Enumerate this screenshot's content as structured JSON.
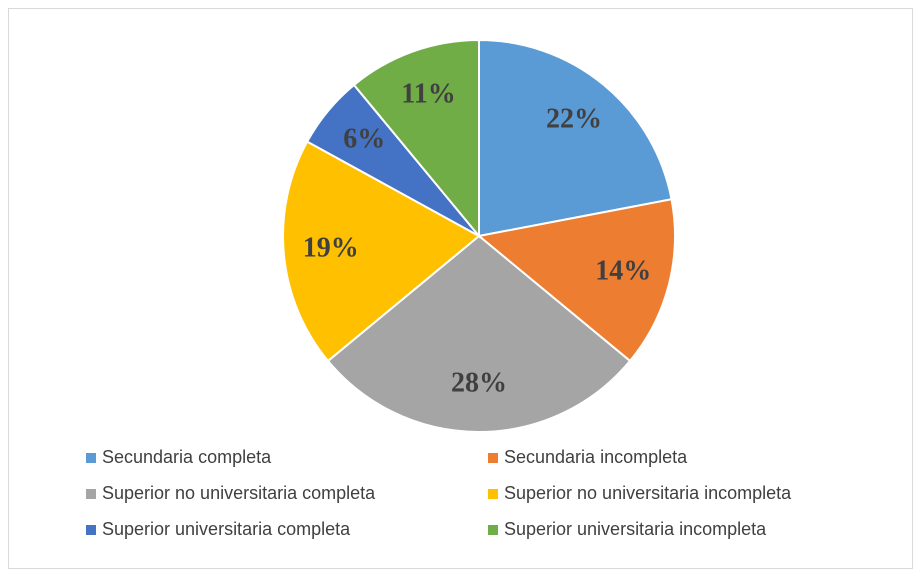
{
  "chart_data": {
    "type": "pie",
    "categories": [
      "Secundaria completa",
      "Secundaria incompleta",
      "Superior no universitaria completa",
      "Superior no universitaria incompleta",
      "Superior universitaria completa",
      "Superior universitaria incompleta"
    ],
    "values": [
      22,
      14,
      28,
      19,
      6,
      11
    ],
    "value_labels": [
      "22%",
      "14%",
      "28%",
      "19%",
      "6%",
      "11%"
    ],
    "colors": [
      "#5b9bd5",
      "#ed7d31",
      "#a5a5a5",
      "#ffc000",
      "#4472c4",
      "#70ad47"
    ]
  }
}
